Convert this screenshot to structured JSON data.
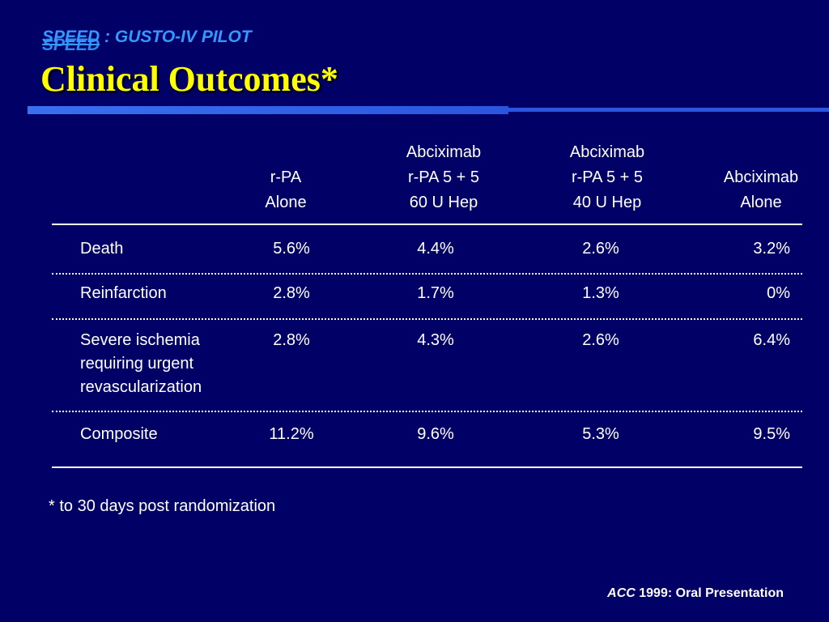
{
  "slide": {
    "supertitle_speed": "SPEED",
    "supertitle_rest": " : GUSTO-IV PILOT",
    "supertitle_ghost": "SPEED",
    "title": "Clinical Outcomes*"
  },
  "table": {
    "headers": [
      [
        "r-PA",
        "Alone"
      ],
      [
        "Abciximab",
        "r-PA 5 + 5",
        "60 U Hep"
      ],
      [
        "Abciximab",
        "r-PA 5 + 5",
        "40 U Hep"
      ],
      [
        "Abciximab",
        "Alone"
      ]
    ],
    "rows": [
      {
        "label": [
          "Death"
        ],
        "values": [
          "5.6%",
          "4.4%",
          "2.6%",
          "3.2%"
        ]
      },
      {
        "label": [
          "Reinfarction"
        ],
        "values": [
          "2.8%",
          "1.7%",
          "1.3%",
          "0%"
        ]
      },
      {
        "label": [
          "Severe ischemia",
          "requiring urgent",
          "revascularization"
        ],
        "values": [
          "2.8%",
          "4.3%",
          "2.6%",
          "6.4%"
        ]
      },
      {
        "label": [
          "Composite"
        ],
        "values": [
          "11.2%",
          "9.6%",
          "5.3%",
          "9.5%"
        ]
      }
    ]
  },
  "footnote": "*  to 30 days post randomization",
  "source": {
    "italic": "ACC",
    "rest": " 1999: Oral Presentation"
  },
  "colors": {
    "background": "#010066",
    "title": "#ffff00",
    "supertitle": "#3399ff",
    "accent_bar": "#2a55e0",
    "text": "#ffffff"
  }
}
